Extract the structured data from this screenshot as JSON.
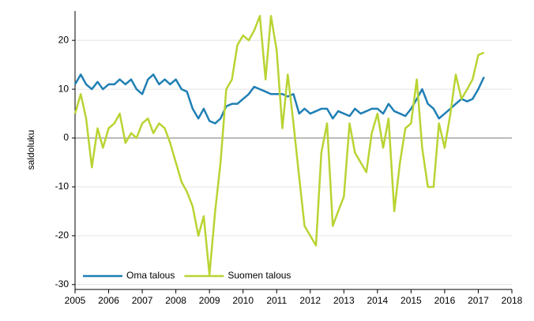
{
  "chart_data": {
    "type": "line",
    "y_label": "saldoluku",
    "x": [
      2005.0,
      2005.17,
      2005.33,
      2005.5,
      2005.67,
      2005.83,
      2006.0,
      2006.17,
      2006.33,
      2006.5,
      2006.67,
      2006.83,
      2007.0,
      2007.17,
      2007.33,
      2007.5,
      2007.67,
      2007.83,
      2008.0,
      2008.17,
      2008.33,
      2008.5,
      2008.67,
      2008.83,
      2009.0,
      2009.17,
      2009.33,
      2009.5,
      2009.67,
      2009.83,
      2010.0,
      2010.17,
      2010.33,
      2010.5,
      2010.67,
      2010.83,
      2011.0,
      2011.17,
      2011.33,
      2011.5,
      2011.67,
      2011.83,
      2012.0,
      2012.17,
      2012.33,
      2012.5,
      2012.67,
      2012.83,
      2013.0,
      2013.17,
      2013.33,
      2013.5,
      2013.67,
      2013.83,
      2014.0,
      2014.17,
      2014.33,
      2014.5,
      2014.67,
      2014.83,
      2015.0,
      2015.17,
      2015.33,
      2015.5,
      2015.67,
      2015.83,
      2016.0,
      2016.17,
      2016.33,
      2016.5,
      2016.67,
      2016.83,
      2017.0,
      2017.17
    ],
    "series": [
      {
        "name": "Oma talous",
        "color": "#1f7fb4",
        "values": [
          11,
          13,
          11,
          10,
          11.5,
          10,
          11,
          11,
          12,
          11,
          12,
          10,
          9,
          12,
          13,
          11,
          12,
          11,
          12,
          10,
          9.5,
          6,
          4,
          6,
          3.5,
          3,
          4,
          6.5,
          7,
          7,
          8,
          9,
          10.5,
          10,
          9.5,
          9,
          9,
          9,
          8.5,
          9,
          5,
          6,
          5,
          5.5,
          6,
          6,
          4,
          5.5,
          5,
          4.5,
          6,
          5,
          5.5,
          6,
          6,
          5,
          7,
          5.5,
          5,
          4.5,
          6,
          8,
          10,
          7,
          6,
          4,
          5,
          6,
          7,
          8,
          7.5,
          8,
          10,
          12.5
        ]
      },
      {
        "name": "Suomen talous",
        "color": "#b8d433",
        "values": [
          5,
          9,
          4,
          -6,
          2,
          -2,
          2,
          3,
          5,
          -1,
          1,
          0,
          3,
          4,
          1,
          3,
          2,
          -1,
          -5,
          -9,
          -11,
          -14,
          -20,
          -16,
          -28,
          -15,
          -5,
          10,
          12,
          19,
          21,
          20,
          22,
          25,
          12,
          25,
          18,
          2,
          13,
          3,
          -8,
          -18,
          -20,
          -22,
          -3,
          3,
          -18,
          -15,
          -12,
          3,
          -3,
          -5,
          -7,
          1,
          5,
          -2,
          4,
          -15,
          -5,
          2,
          3,
          12,
          -2,
          -10,
          -10,
          3,
          -2,
          5,
          13,
          8,
          10,
          12,
          17,
          17.5
        ]
      }
    ],
    "xlim": [
      2005,
      2018
    ],
    "xticks": [
      2005,
      2006,
      2007,
      2008,
      2009,
      2010,
      2011,
      2012,
      2013,
      2014,
      2015,
      2016,
      2017,
      2018
    ],
    "ylim": [
      -31,
      26
    ],
    "yticks": [
      -30,
      -20,
      -10,
      0,
      10,
      20
    ],
    "grid": true,
    "legend": "lower left"
  }
}
